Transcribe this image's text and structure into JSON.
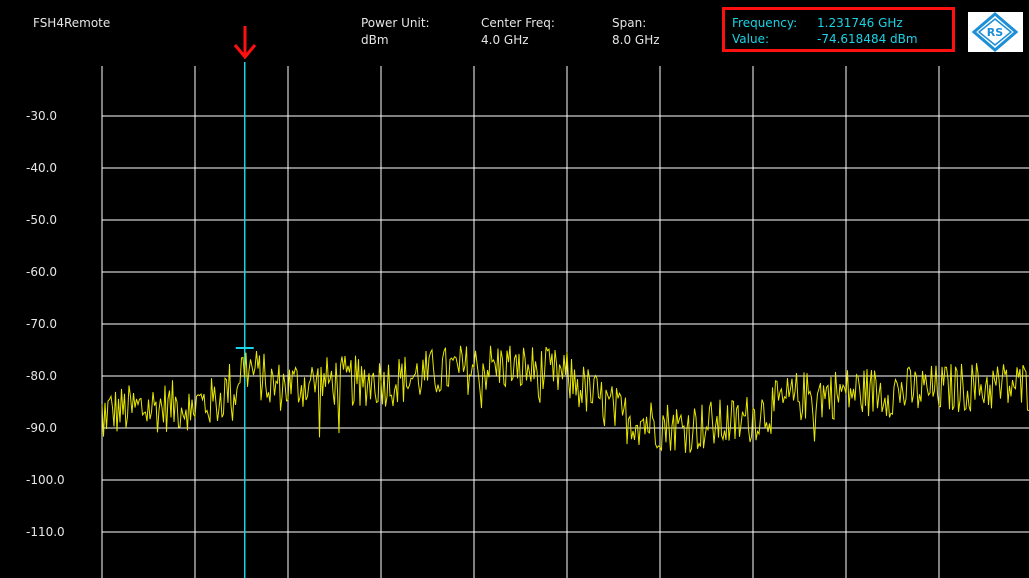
{
  "app": {
    "title": "FSH4Remote"
  },
  "header": {
    "power_unit": {
      "label": "Power Unit:",
      "value": "dBm"
    },
    "center_freq": {
      "label": "Center Freq:",
      "value": "4.0 GHz"
    },
    "span": {
      "label": "Span:",
      "value": "8.0 GHz"
    }
  },
  "marker": {
    "frequency_label": "Frequency:",
    "frequency_value": "1.231746 GHz",
    "value_label": "Value:",
    "value_value": "-74.618484 dBm",
    "freq_ghz": 1.231746,
    "level_dbm": -74.618484
  },
  "logo": {
    "icon": "rohde-schwarz-logo",
    "text": "RS"
  },
  "colors": {
    "background": "#000000",
    "grid": "#ffffff",
    "trace": "#e6e600",
    "marker": "#19d3e6",
    "highlight": "#ff1010"
  },
  "chart_data": {
    "type": "line",
    "title": "",
    "xlabel": "",
    "ylabel": "",
    "xlim": [
      0,
      8.0
    ],
    "ylim": [
      -120,
      -20
    ],
    "y_ticks": [
      "-30.0",
      "-40.0",
      "-50.0",
      "-60.0",
      "-70.0",
      "-80.0",
      "-90.0",
      "-100.0",
      "-110.0"
    ],
    "grid": true,
    "x_unit": "GHz",
    "y_unit": "dBm",
    "series": [
      {
        "x": [
          0.0,
          0.5,
          1.0,
          1.23,
          1.5,
          2.0,
          2.5,
          3.0,
          3.5,
          4.0,
          4.5,
          5.0,
          5.5,
          6.0,
          6.5,
          7.0,
          7.5,
          8.0
        ],
        "values": [
          -87,
          -86,
          -85,
          -78,
          -82,
          -81,
          -81,
          -79,
          -78,
          -80,
          -88,
          -90,
          -89,
          -84,
          -83,
          -83,
          -82,
          -82
        ]
      }
    ]
  }
}
